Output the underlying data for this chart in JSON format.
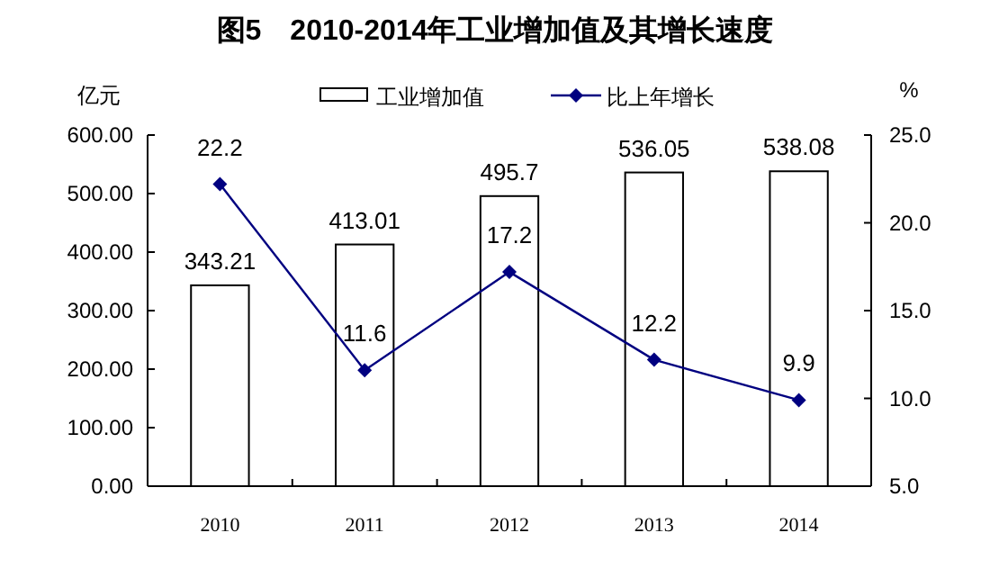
{
  "chart_data": {
    "type": "bar",
    "title": "图5　2010-2014年工业增加值及其增长速度",
    "ylabel": "亿元",
    "y2label": "%",
    "categories": [
      "2010",
      "2011",
      "2012",
      "2013",
      "2014"
    ],
    "series": [
      {
        "name": "工业增加值",
        "color": "#ffffff",
        "values": [
          343.21,
          413.01,
          495.7,
          536.05,
          538.08
        ]
      },
      {
        "name": "比上年增长",
        "type": "line",
        "axis": "y2",
        "color": "#000080",
        "marker": "diamond",
        "values": [
          22.2,
          11.6,
          17.2,
          12.2,
          9.9
        ]
      }
    ],
    "data_labels": true,
    "ylim": [
      0,
      600
    ],
    "yticks": [
      {
        "value": 0,
        "label": "0.00"
      },
      {
        "value": 100,
        "label": "100.00"
      },
      {
        "value": 200,
        "label": "200.00"
      },
      {
        "value": 300,
        "label": "300.00"
      },
      {
        "value": 400,
        "label": "400.00"
      },
      {
        "value": 500,
        "label": "500.00"
      },
      {
        "value": 600,
        "label": "600.00"
      }
    ],
    "y2lim": [
      5,
      25
    ],
    "y2ticks": [
      {
        "value": 5,
        "label": "5.0"
      },
      {
        "value": 10,
        "label": "10.0"
      },
      {
        "value": 15,
        "label": "15.0"
      },
      {
        "value": 20,
        "label": "20.0"
      },
      {
        "value": 25,
        "label": "25.0"
      }
    ],
    "legend": "top",
    "grid": false
  }
}
